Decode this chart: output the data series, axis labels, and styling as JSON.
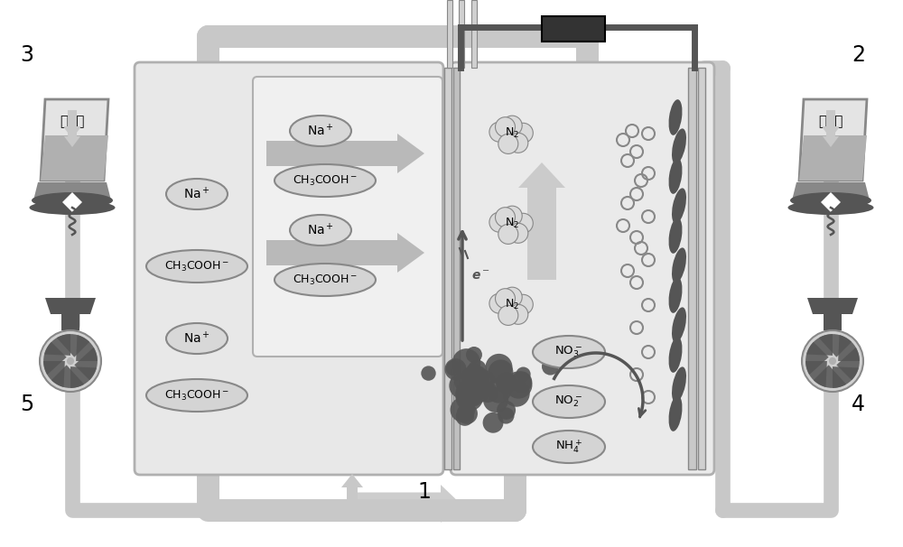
{
  "bg_color": "#ffffff",
  "fig_width": 10.0,
  "fig_height": 6.06
}
